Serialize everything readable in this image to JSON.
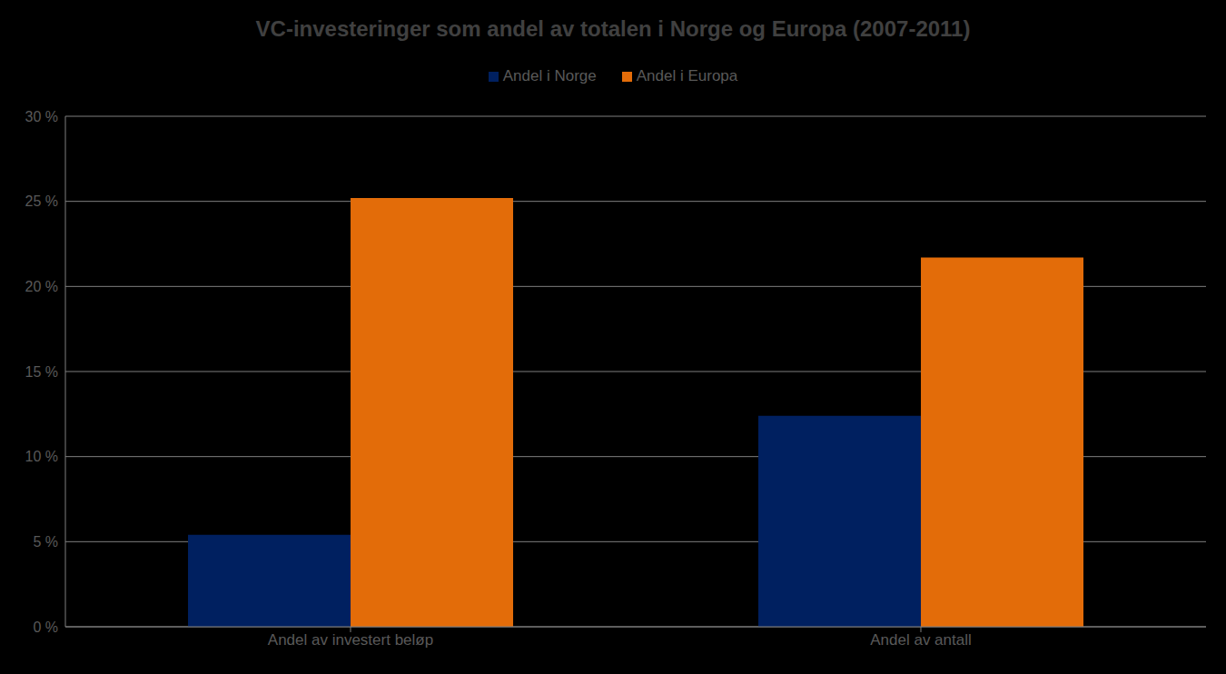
{
  "chart_data": {
    "type": "bar",
    "title": "VC-investeringer som andel av totalen i Norge og Europa (2007-2011)",
    "categories": [
      "Andel av investert beløp",
      "Andel av antall"
    ],
    "series": [
      {
        "name": "Andel i Norge",
        "color": "#002060",
        "values": [
          5.4,
          12.4
        ]
      },
      {
        "name": "Andel i Europa",
        "color": "#e36c09",
        "values": [
          25.2,
          21.7
        ]
      }
    ],
    "ylim": [
      0,
      30
    ],
    "yticks": [
      {
        "value": 0,
        "label": "0 %"
      },
      {
        "value": 5,
        "label": "5 %"
      },
      {
        "value": 10,
        "label": "10 %"
      },
      {
        "value": 15,
        "label": "15 %"
      },
      {
        "value": 20,
        "label": "20 %"
      },
      {
        "value": 25,
        "label": "25 %"
      },
      {
        "value": 30,
        "label": "30 %"
      }
    ],
    "grid": true,
    "legend": "top"
  }
}
